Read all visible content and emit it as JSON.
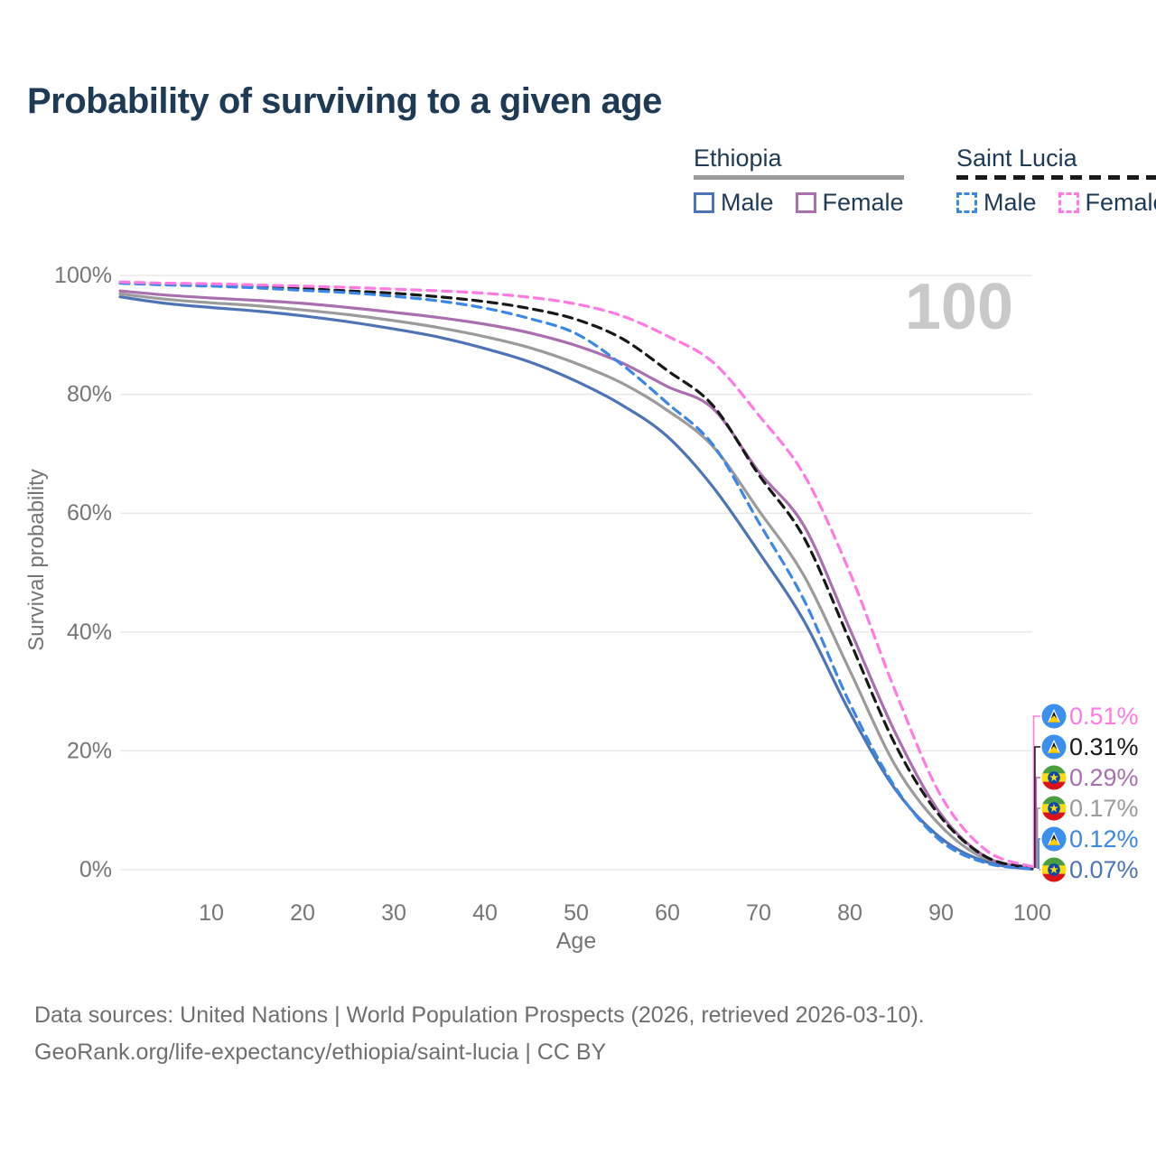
{
  "title": "Probability of surviving to a given age",
  "watermark": "100",
  "colors": {
    "navy": "#1f3a55",
    "grid": "#e8e8e8",
    "axis_text": "#767676",
    "watermark": "#c9c9c9",
    "footer_text": "#6f6f6f",
    "ethiopia_underline": "#9b9b9b",
    "saint_lucia_underline": "#191919"
  },
  "legend": {
    "groups": [
      {
        "label": "Ethiopia",
        "dash": false,
        "underline_color": "#9b9b9b",
        "items": [
          {
            "label": "Male",
            "color": "#4e74b6",
            "dash": false
          },
          {
            "label": "Female",
            "color": "#a96fae",
            "dash": false
          }
        ]
      },
      {
        "label": "Saint Lucia",
        "dash": true,
        "underline_color": "#191919",
        "items": [
          {
            "label": "Male",
            "color": "#3c87e6",
            "dash": true
          },
          {
            "label": "Female",
            "color": "#ff7ae1",
            "dash": true
          }
        ]
      }
    ]
  },
  "chart_data": {
    "type": "line",
    "title": "Probability of surviving to a given age",
    "xlabel": "Age",
    "ylabel": "Survival probability",
    "xlim": [
      0,
      100
    ],
    "ylim": [
      0,
      100
    ],
    "grid": true,
    "xticks": [
      10,
      20,
      30,
      40,
      50,
      60,
      70,
      80,
      90,
      100
    ],
    "yticks": [
      0,
      20,
      40,
      60,
      80,
      100
    ],
    "ytick_suffix": "%",
    "x": [
      0,
      5,
      10,
      15,
      20,
      25,
      30,
      35,
      40,
      45,
      50,
      55,
      60,
      65,
      70,
      75,
      80,
      85,
      90,
      95,
      100
    ],
    "series": [
      {
        "name": "Saint Lucia Female",
        "country": "saint-lucia",
        "sex": "female",
        "color": "#ff7ae1",
        "dash": true,
        "end_label": "0.51%",
        "values": [
          98.9,
          98.7,
          98.6,
          98.4,
          98.2,
          98.0,
          97.7,
          97.4,
          97.0,
          96.3,
          95.2,
          93.2,
          89.8,
          85.4,
          76.5,
          66.4,
          50.0,
          30.0,
          12.4,
          3.2,
          0.51
        ]
      },
      {
        "name": "Saint Lucia",
        "country": "saint-lucia",
        "sex": "total",
        "color": "#191919",
        "dash": true,
        "end_label": "0.31%",
        "values": [
          98.8,
          98.5,
          98.3,
          98.1,
          97.8,
          97.4,
          97.0,
          96.4,
          95.6,
          94.4,
          92.6,
          89.4,
          84.0,
          78.1,
          66.5,
          55.8,
          38.5,
          21.0,
          8.8,
          2.1,
          0.31
        ]
      },
      {
        "name": "Ethiopia Female",
        "country": "ethiopia",
        "sex": "female",
        "color": "#a96fae",
        "dash": false,
        "end_label": "0.29%",
        "values": [
          97.4,
          96.7,
          96.2,
          95.8,
          95.3,
          94.6,
          93.8,
          92.9,
          91.8,
          90.3,
          88.2,
          85.3,
          81.3,
          77.6,
          67.0,
          57.8,
          40.5,
          23.0,
          9.3,
          2.1,
          0.29
        ]
      },
      {
        "name": "Ethiopia",
        "country": "ethiopia",
        "sex": "total",
        "color": "#9b9b9b",
        "dash": false,
        "end_label": "0.17%",
        "values": [
          96.9,
          96.0,
          95.4,
          94.9,
          94.2,
          93.4,
          92.4,
          91.2,
          89.7,
          87.8,
          85.2,
          81.9,
          77.3,
          71.2,
          60.5,
          49.4,
          33.5,
          17.5,
          7.3,
          1.7,
          0.17
        ]
      },
      {
        "name": "Saint Lucia Male",
        "country": "saint-lucia",
        "sex": "male",
        "color": "#3c87e6",
        "dash": true,
        "end_label": "0.12%",
        "values": [
          98.7,
          98.4,
          98.2,
          97.9,
          97.5,
          97.1,
          96.5,
          95.7,
          94.5,
          92.7,
          90.2,
          85.0,
          78.5,
          71.5,
          58.5,
          45.3,
          28.0,
          13.8,
          4.8,
          1.1,
          0.12
        ]
      },
      {
        "name": "Ethiopia Male",
        "country": "ethiopia",
        "sex": "male",
        "color": "#4e74b6",
        "dash": false,
        "end_label": "0.07%",
        "values": [
          96.4,
          95.3,
          94.6,
          94.0,
          93.2,
          92.2,
          91.0,
          89.6,
          87.7,
          85.4,
          82.2,
          78.2,
          72.9,
          64.4,
          53.5,
          41.8,
          26.5,
          13.5,
          5.3,
          1.3,
          0.07
        ]
      }
    ]
  },
  "footer": {
    "line1": "Data sources: United Nations | World Population Prospects (2026, retrieved 2026-03-10).",
    "line2": "GeoRank.org/life-expectancy/ethiopia/saint-lucia | CC BY"
  }
}
